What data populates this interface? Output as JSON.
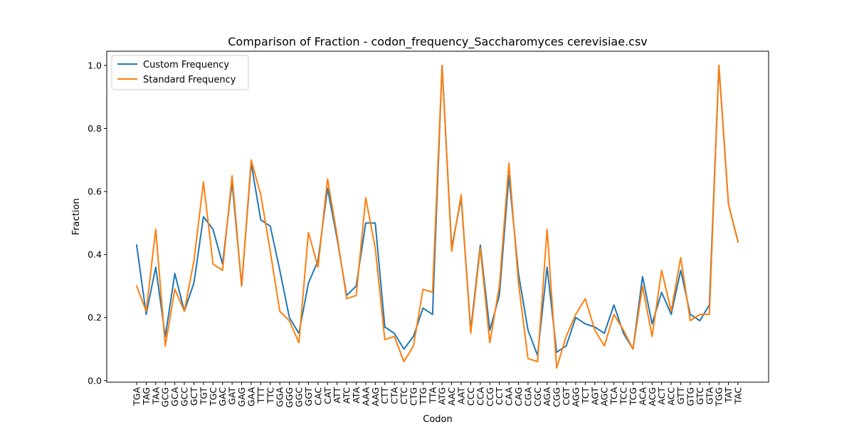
{
  "chart_data": {
    "type": "line",
    "title": "Comparison of Fraction - codon_frequency_Saccharomyces cerevisiae.csv",
    "xlabel": "Codon",
    "ylabel": "Fraction",
    "ylim": [
      -0.005,
      1.045
    ],
    "yticks": [
      "0.0",
      "0.2",
      "0.4",
      "0.6",
      "0.8",
      "1.0"
    ],
    "grid": false,
    "legend": "top-left",
    "categories": [
      "TGA",
      "TAG",
      "TAA",
      "GCG",
      "GCA",
      "GCC",
      "GCT",
      "TGT",
      "TGC",
      "GAC",
      "GAT",
      "GAG",
      "GAA",
      "TTT",
      "TTC",
      "GGA",
      "GGG",
      "GGC",
      "GGT",
      "CAC",
      "CAT",
      "ATT",
      "ATC",
      "ATA",
      "AAA",
      "AAG",
      "CTT",
      "CTA",
      "CTC",
      "CTG",
      "TTG",
      "TTA",
      "ATG",
      "AAC",
      "AAT",
      "CCC",
      "CCA",
      "CCG",
      "CCT",
      "CAA",
      "CAG",
      "CGA",
      "CGC",
      "AGA",
      "CGG",
      "CGT",
      "AGG",
      "TCT",
      "AGT",
      "AGC",
      "TCA",
      "TCC",
      "TCG",
      "ACA",
      "ACG",
      "ACT",
      "ACC",
      "GTT",
      "GTG",
      "GTC",
      "GTA",
      "TGG",
      "TAT",
      "TAC"
    ],
    "series": [
      {
        "name": "Custom Frequency",
        "color": "#1f77b4",
        "values": [
          0.43,
          0.21,
          0.36,
          0.14,
          0.34,
          0.22,
          0.31,
          0.52,
          0.48,
          0.37,
          0.63,
          0.3,
          0.69,
          0.51,
          0.49,
          0.35,
          0.2,
          0.15,
          0.31,
          0.38,
          0.61,
          0.45,
          0.27,
          0.3,
          0.5,
          0.5,
          0.17,
          0.15,
          0.1,
          0.14,
          0.23,
          0.21,
          1.0,
          0.42,
          0.58,
          0.16,
          0.43,
          0.16,
          0.27,
          0.65,
          0.34,
          0.16,
          0.08,
          0.36,
          0.09,
          0.11,
          0.2,
          0.18,
          0.17,
          0.15,
          0.24,
          0.15,
          0.1,
          0.33,
          0.18,
          0.28,
          0.21,
          0.35,
          0.21,
          0.19,
          0.24,
          1.0,
          0.56,
          0.44
        ]
      },
      {
        "name": "Standard Frequency",
        "color": "#ff7f0e",
        "values": [
          0.3,
          0.22,
          0.48,
          0.11,
          0.29,
          0.22,
          0.38,
          0.63,
          0.37,
          0.35,
          0.65,
          0.3,
          0.7,
          0.59,
          0.41,
          0.22,
          0.19,
          0.12,
          0.47,
          0.36,
          0.64,
          0.46,
          0.26,
          0.27,
          0.58,
          0.42,
          0.13,
          0.14,
          0.06,
          0.11,
          0.29,
          0.28,
          1.0,
          0.41,
          0.59,
          0.15,
          0.42,
          0.12,
          0.3,
          0.69,
          0.31,
          0.07,
          0.06,
          0.48,
          0.04,
          0.14,
          0.21,
          0.26,
          0.16,
          0.11,
          0.21,
          0.16,
          0.1,
          0.3,
          0.14,
          0.35,
          0.22,
          0.39,
          0.19,
          0.21,
          0.21,
          1.0,
          0.56,
          0.44
        ]
      }
    ]
  }
}
